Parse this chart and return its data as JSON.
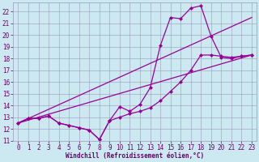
{
  "xlabel": "Windchill (Refroidissement éolien,°C)",
  "bg_color": "#cce8f0",
  "line_color": "#990099",
  "marker": "D",
  "markersize": 2.0,
  "linewidth": 0.9,
  "xlim": [
    -0.5,
    23.5
  ],
  "ylim": [
    11,
    22.8
  ],
  "xticks": [
    0,
    1,
    2,
    3,
    4,
    5,
    6,
    7,
    8,
    9,
    10,
    11,
    12,
    13,
    14,
    15,
    16,
    17,
    18,
    19,
    20,
    21,
    22,
    23
  ],
  "yticks": [
    11,
    12,
    13,
    14,
    15,
    16,
    17,
    18,
    19,
    20,
    21,
    22
  ],
  "series": [
    {
      "x": [
        0,
        1,
        2,
        3,
        4,
        5,
        6,
        7,
        8,
        9,
        10,
        11,
        12,
        13,
        14,
        15,
        16,
        17,
        18,
        19,
        20,
        21,
        22,
        23
      ],
      "y": [
        12.5,
        12.9,
        12.9,
        13.1,
        12.5,
        12.3,
        12.1,
        11.9,
        11.1,
        12.7,
        13.9,
        13.5,
        14.1,
        15.5,
        19.1,
        21.5,
        21.4,
        22.3,
        22.5,
        19.9,
        18.1,
        18.0,
        18.2,
        18.3
      ]
    },
    {
      "x": [
        0,
        1,
        2,
        3,
        4,
        5,
        6,
        7,
        8,
        9,
        10,
        11,
        12,
        13,
        14,
        15,
        16,
        17,
        18,
        19,
        20,
        21,
        22,
        23
      ],
      "y": [
        12.5,
        12.9,
        12.9,
        13.1,
        12.5,
        12.3,
        12.1,
        11.9,
        11.1,
        12.7,
        13.0,
        13.3,
        13.5,
        13.8,
        14.4,
        15.2,
        16.0,
        17.0,
        18.3,
        18.3,
        18.2,
        18.1,
        18.2,
        18.3
      ]
    },
    {
      "x": [
        0,
        23
      ],
      "y": [
        12.5,
        21.5
      ]
    },
    {
      "x": [
        0,
        23
      ],
      "y": [
        12.5,
        18.3
      ]
    }
  ],
  "grid_color": "#9999bb",
  "font_color": "#660066",
  "xlabel_fontsize": 5.5,
  "tick_fontsize": 5.5
}
